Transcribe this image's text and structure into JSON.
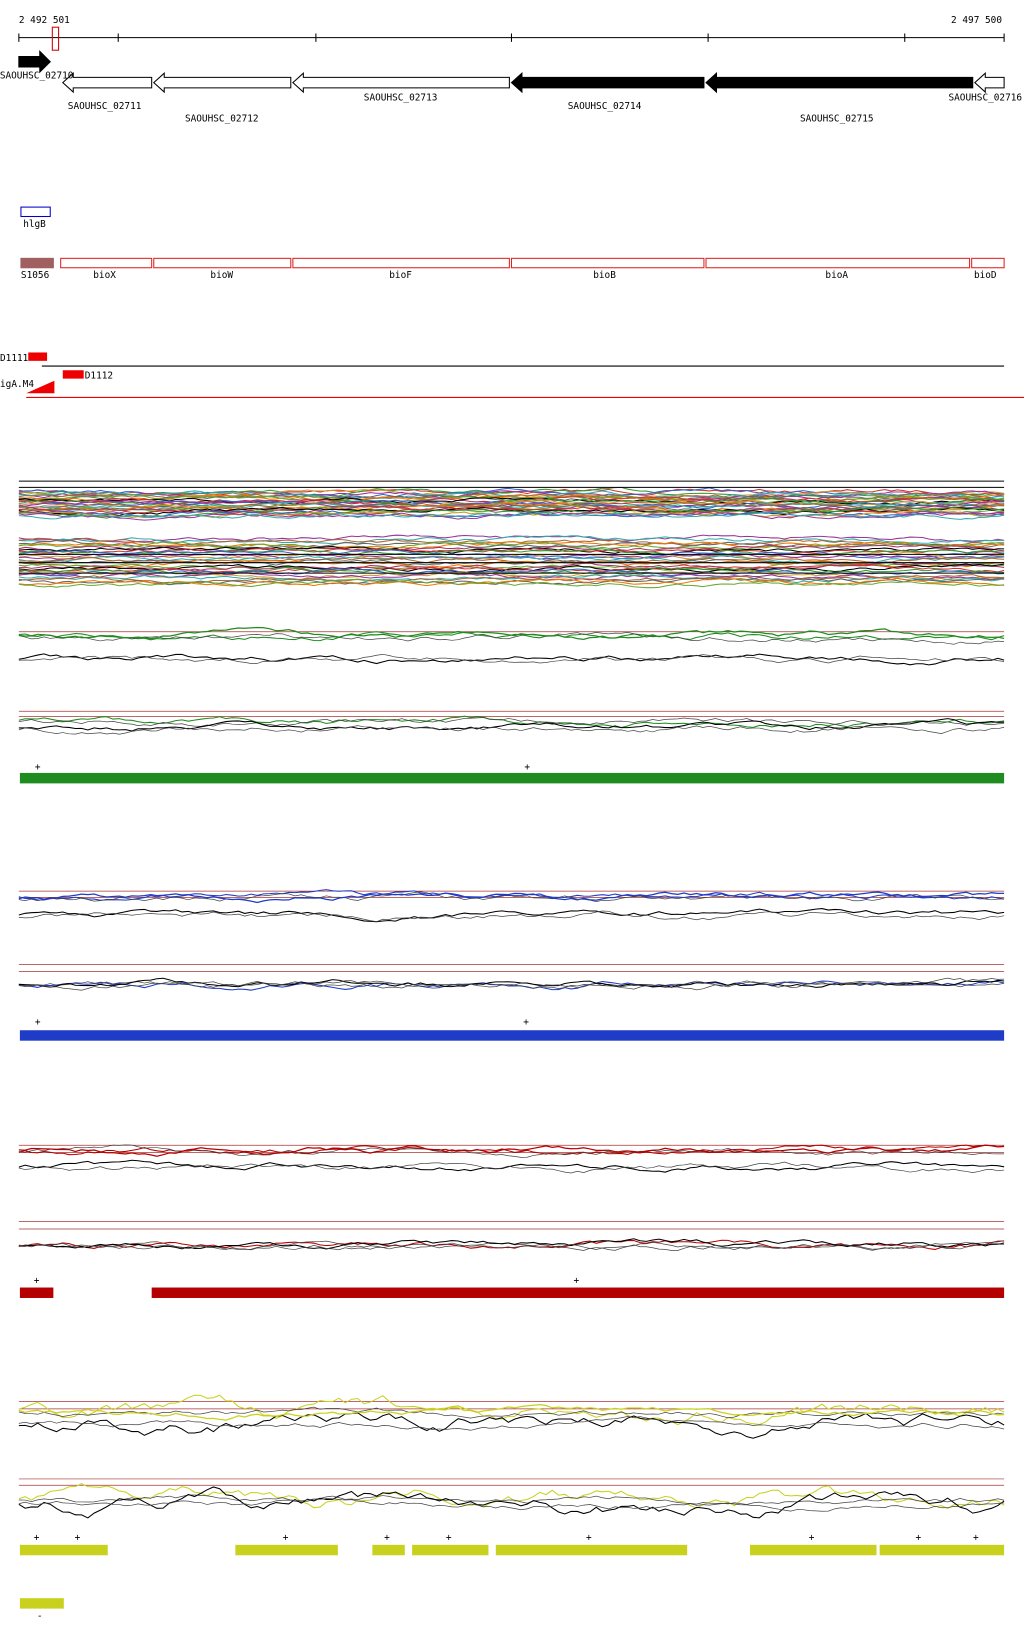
{
  "ruler": {
    "start": "2 492 501",
    "end": "2 497 500"
  },
  "genes": [
    "SAOUHSC_02710",
    "SAOUHSC_02711",
    "SAOUHSC_02712",
    "SAOUHSC_02713",
    "SAOUHSC_02714",
    "SAOUHSC_02715",
    "SAOUHSC_02716"
  ],
  "other_feature": "hlgB",
  "operon": [
    "S1056",
    "bioX",
    "bioW",
    "bioF",
    "bioB",
    "bioA",
    "bioD"
  ],
  "regulators": [
    "D1111",
    "D1112",
    "igA.M4"
  ],
  "tracks": [
    {
      "marks": [
        "+",
        "+"
      ]
    },
    {
      "marks": [
        "+",
        "+"
      ]
    },
    {
      "marks": [
        "+",
        "+"
      ]
    },
    {
      "marks": [
        "+",
        "+",
        "+",
        "+",
        "+",
        "+",
        "+",
        "+",
        "+"
      ]
    }
  ],
  "footer_mark": "-"
}
